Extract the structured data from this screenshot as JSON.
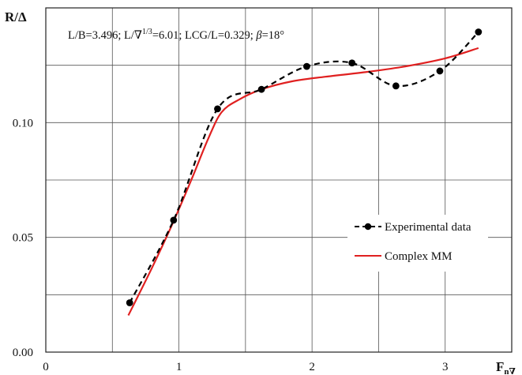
{
  "chart_data": {
    "type": "line",
    "ylabel": "R/Δ",
    "xlabel_main": "F",
    "xlabel_sub": "n∇",
    "annotation": "L/B=3.496; L/∇1/3=6.01; LCG/L=0.329; β=18°",
    "annotation_parts": [
      "L/B=3.496; L/∇",
      "1/3",
      "=6.01; LCG/L=0.329; ",
      "β",
      "=18°"
    ],
    "xlim": [
      0,
      3.5
    ],
    "ylim": [
      0,
      0.15
    ],
    "x_ticks": [
      {
        "value": 0,
        "label": "0"
      },
      {
        "value": 1,
        "label": "1"
      },
      {
        "value": 2,
        "label": "2"
      },
      {
        "value": 3,
        "label": "3"
      }
    ],
    "y_ticks": [
      {
        "value": 0.0,
        "label": "0.00"
      },
      {
        "value": 0.05,
        "label": "0.05"
      },
      {
        "value": 0.1,
        "label": "0.10"
      }
    ],
    "x_grid": [
      0.5,
      1,
      1.5,
      2,
      2.5,
      3
    ],
    "y_grid": [
      0.025,
      0.05,
      0.075,
      0.1,
      0.125
    ],
    "grid": true,
    "legend_position": "right-middle",
    "series": [
      {
        "name": "Experimental data",
        "style": "dashed-with-markers",
        "color": "#000000",
        "x": [
          0.63,
          0.96,
          1.29,
          1.62,
          1.96,
          2.3,
          2.63,
          2.96,
          3.25
        ],
        "y": [
          0.0215,
          0.0575,
          0.106,
          0.1145,
          0.1245,
          0.126,
          0.116,
          0.1225,
          0.1395
        ]
      },
      {
        "name": "Complex MM",
        "style": "solid",
        "color": "#e02020",
        "x": [
          0.62,
          0.8,
          0.96,
          1.1,
          1.22,
          1.32,
          1.45,
          1.62,
          1.85,
          2.1,
          2.4,
          2.7,
          3.0,
          3.25
        ],
        "y": [
          0.016,
          0.037,
          0.057,
          0.076,
          0.093,
          0.1045,
          0.11,
          0.1145,
          0.118,
          0.12,
          0.122,
          0.1245,
          0.128,
          0.1325
        ]
      }
    ]
  }
}
